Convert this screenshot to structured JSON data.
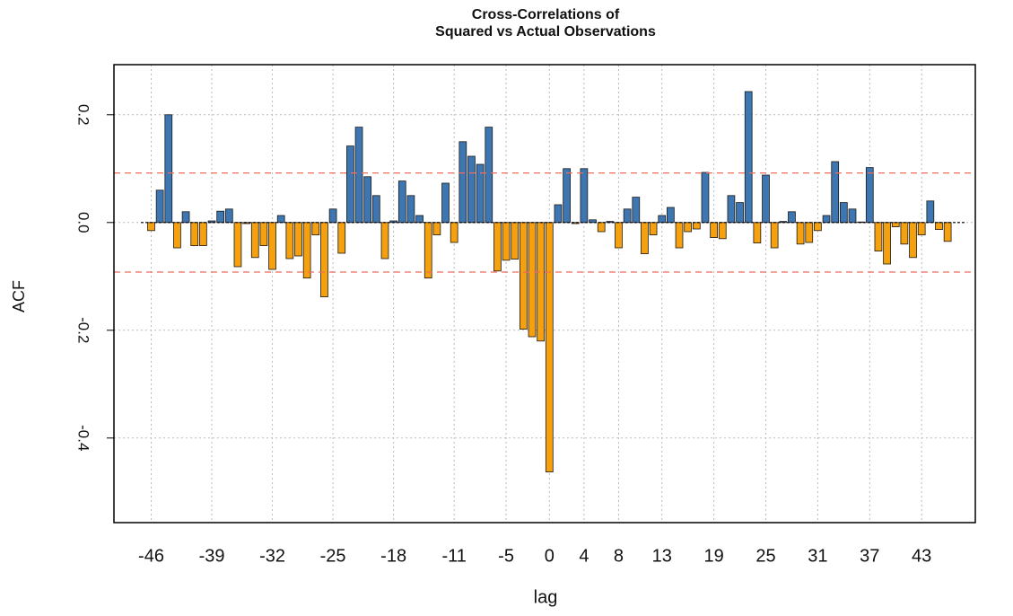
{
  "chart_data": {
    "type": "bar",
    "title": "Cross-Correlations of",
    "subtitle": "Squared vs Actual Observations",
    "xlabel": "lag",
    "ylabel": "ACF",
    "x": [
      -46,
      -45,
      -44,
      -43,
      -42,
      -41,
      -40,
      -39,
      -38,
      -37,
      -36,
      -35,
      -34,
      -33,
      -32,
      -31,
      -30,
      -29,
      -28,
      -27,
      -26,
      -25,
      -24,
      -23,
      -22,
      -21,
      -20,
      -19,
      -18,
      -17,
      -16,
      -15,
      -14,
      -13,
      -12,
      -11,
      -10,
      -9,
      -8,
      -7,
      -6,
      -5,
      -4,
      -3,
      -2,
      -1,
      0,
      1,
      2,
      3,
      4,
      5,
      6,
      7,
      8,
      9,
      10,
      11,
      12,
      13,
      14,
      15,
      16,
      17,
      18,
      19,
      20,
      21,
      22,
      23,
      24,
      25,
      26,
      27,
      28,
      29,
      30,
      31,
      32,
      33,
      34,
      35,
      36,
      37,
      38,
      39,
      40,
      41,
      42,
      43,
      44,
      45,
      46
    ],
    "values": [
      -0.015,
      0.06,
      0.2,
      -0.047,
      0.02,
      -0.043,
      -0.043,
      0.003,
      0.021,
      0.025,
      -0.082,
      -0.002,
      -0.065,
      -0.043,
      -0.087,
      0.013,
      -0.067,
      -0.062,
      -0.103,
      -0.023,
      -0.138,
      0.025,
      -0.057,
      0.142,
      0.177,
      0.085,
      0.05,
      -0.067,
      0.003,
      0.077,
      0.05,
      0.013,
      -0.103,
      -0.023,
      0.073,
      -0.037,
      0.15,
      0.123,
      0.108,
      0.177,
      -0.09,
      -0.07,
      -0.068,
      -0.198,
      -0.212,
      -0.22,
      -0.463,
      0.033,
      0.1,
      -0.002,
      0.1,
      0.005,
      -0.017,
      0.002,
      -0.047,
      0.025,
      0.047,
      -0.058,
      -0.023,
      0.013,
      0.028,
      -0.047,
      -0.017,
      -0.012,
      0.093,
      -0.028,
      -0.03,
      0.05,
      0.037,
      0.243,
      -0.038,
      0.088,
      -0.047,
      0.002,
      0.02,
      -0.04,
      -0.037,
      -0.015,
      0.013,
      0.113,
      0.037,
      0.025,
      0.001,
      0.102,
      -0.053,
      -0.077,
      -0.008,
      -0.04,
      -0.065,
      -0.023,
      0.04,
      -0.013,
      -0.035
    ],
    "positive_color": "#3d76b0",
    "negative_color": "#f5a00f",
    "confidence_band": [
      -0.092,
      0.092
    ],
    "band_color": "#f26b5b",
    "xlim": [
      -50.3,
      49.2
    ],
    "ylim": [
      -0.557,
      0.293
    ],
    "xticks": [
      -46,
      -39,
      -32,
      -25,
      -18,
      -11,
      -5,
      0,
      4,
      8,
      13,
      19,
      25,
      31,
      37,
      43
    ],
    "yticks": [
      {
        "value": -0.4,
        "label": "-0.4"
      },
      {
        "value": -0.2,
        "label": "-0.2"
      },
      {
        "value": 0,
        "label": "0.0"
      },
      {
        "value": 0.2,
        "label": "0.2"
      }
    ],
    "grid": true
  }
}
